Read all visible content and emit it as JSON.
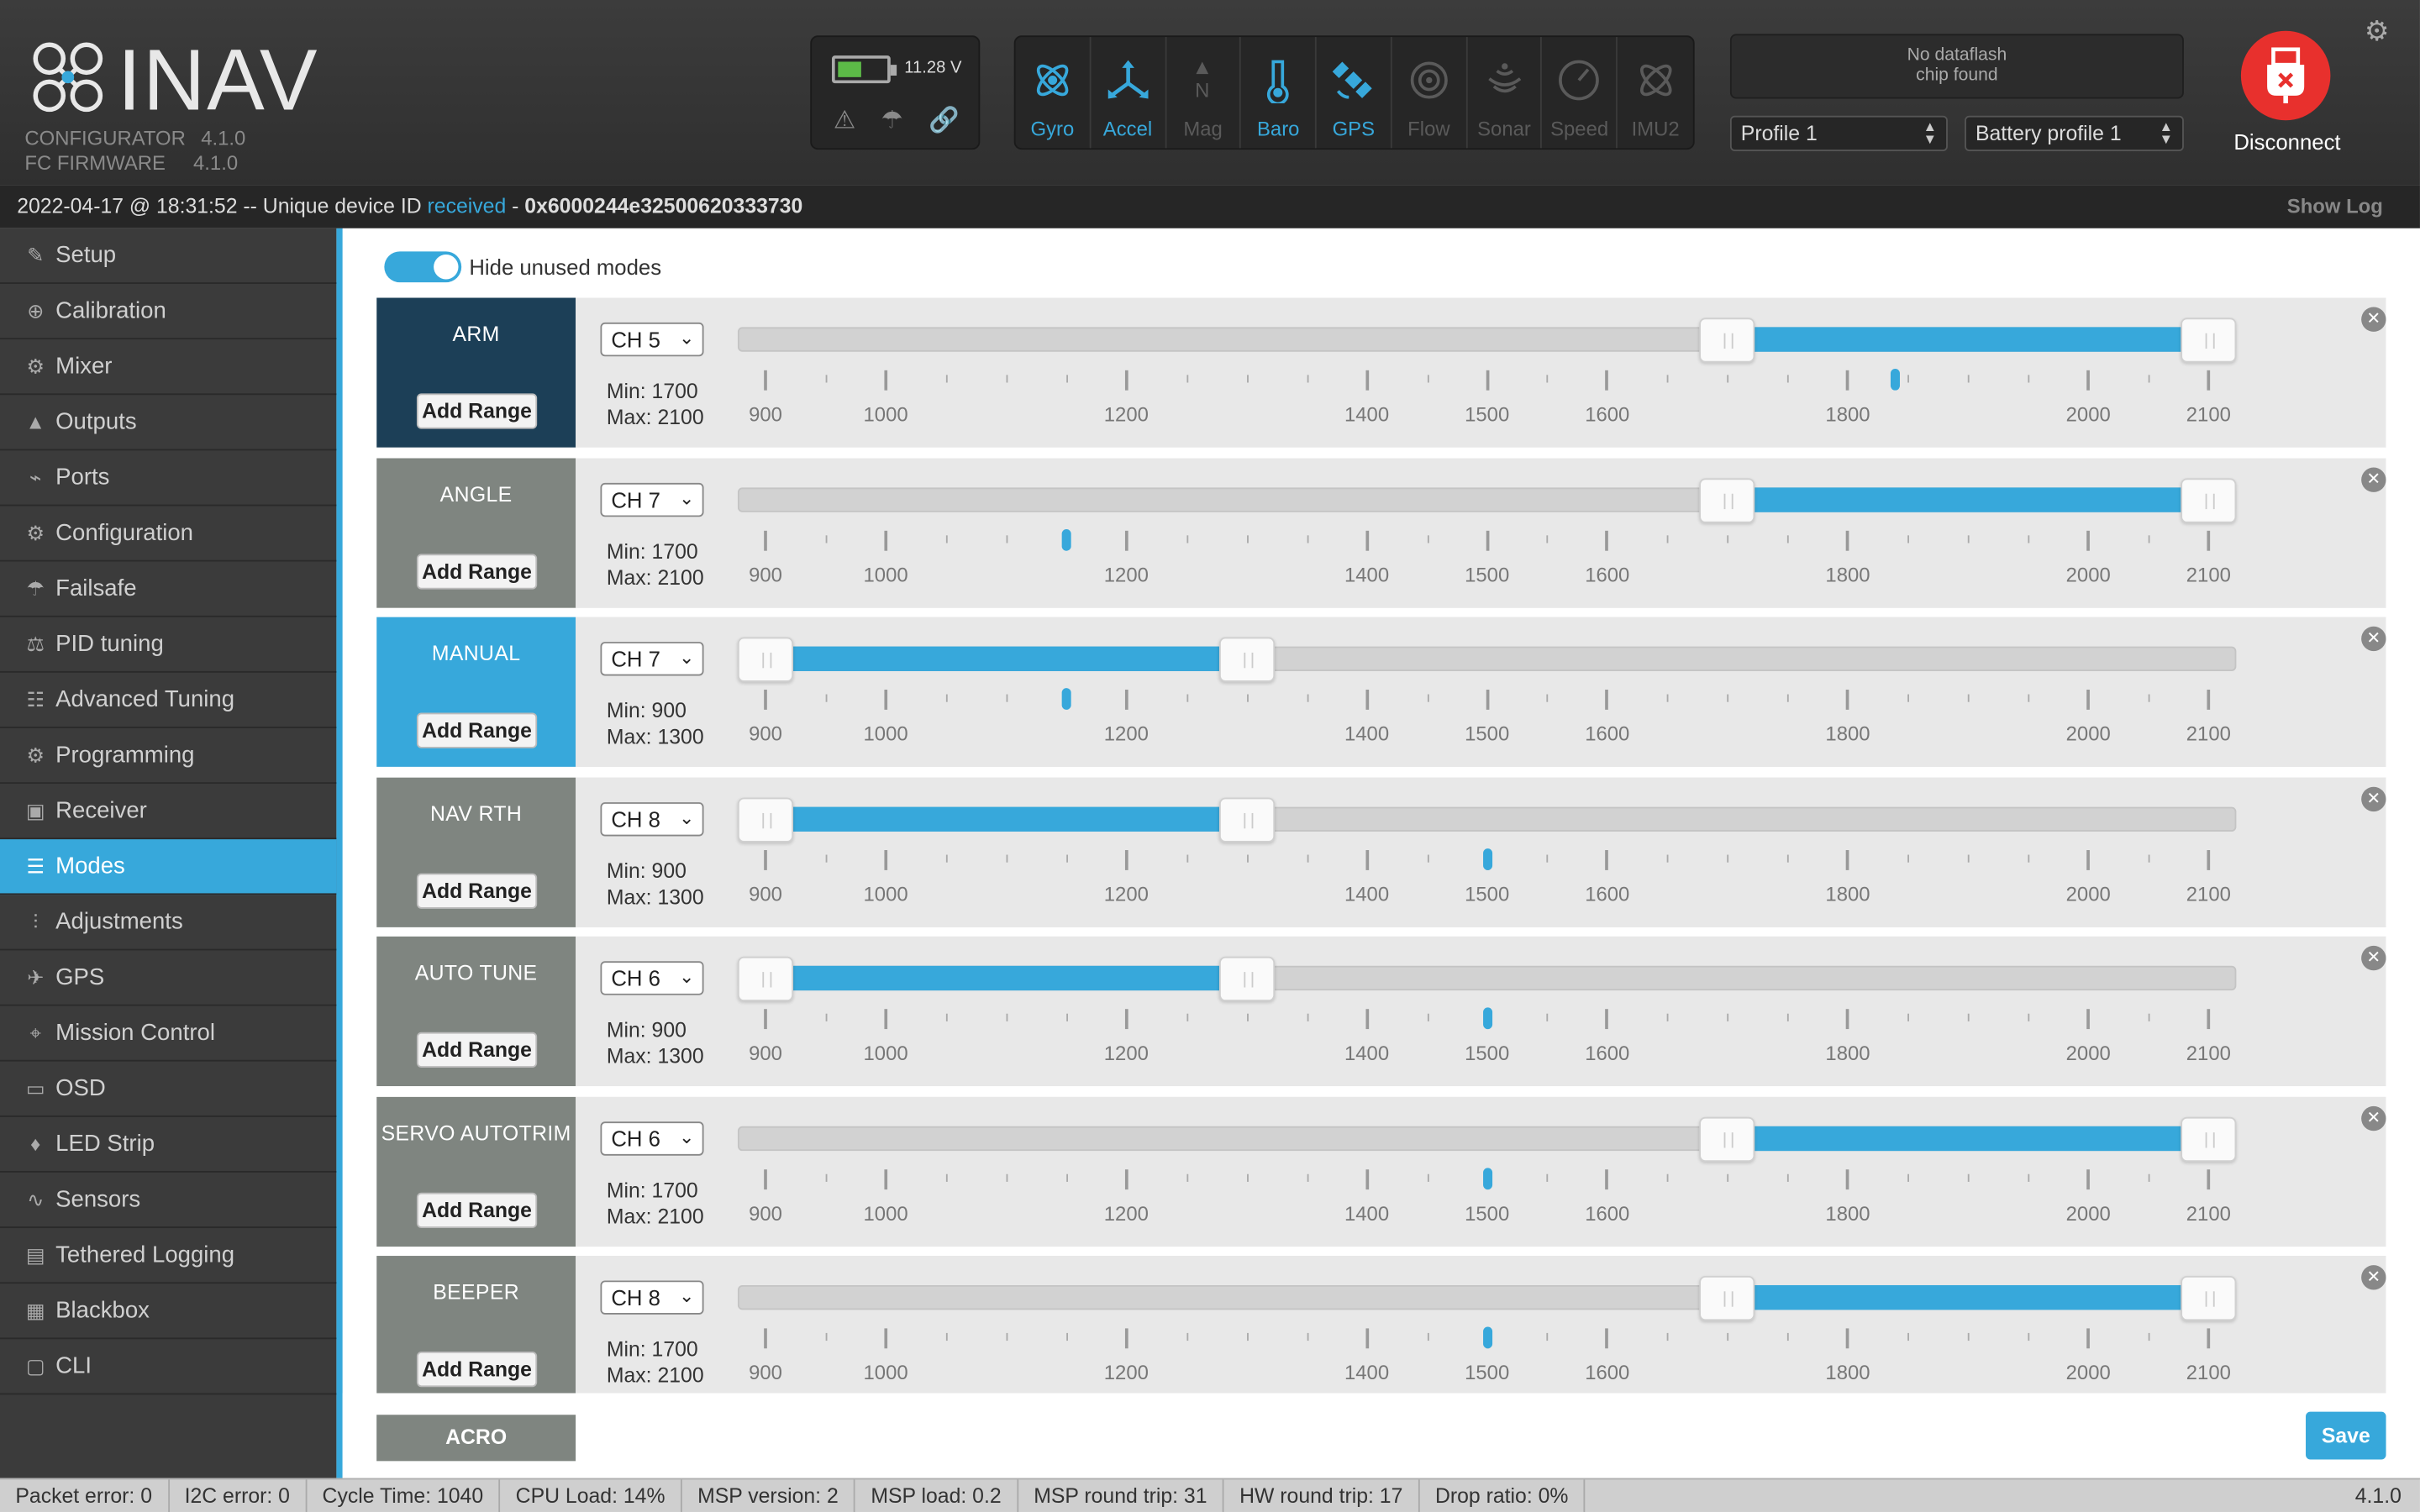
{
  "app": {
    "name": "INAV"
  },
  "versions": {
    "configurator_label": "CONFIGURATOR",
    "configurator_version": "4.1.0",
    "firmware_label": "FC FIRMWARE",
    "firmware_version": "4.1.0"
  },
  "battery": {
    "voltage": "11.28 V",
    "level": 0.45
  },
  "sensors": [
    {
      "label": "Gyro",
      "active": true,
      "icon": "gyro-icon"
    },
    {
      "label": "Accel",
      "active": true,
      "icon": "accel-icon"
    },
    {
      "label": "Mag",
      "active": false,
      "icon": "mag-icon"
    },
    {
      "label": "Baro",
      "active": true,
      "icon": "baro-icon"
    },
    {
      "label": "GPS",
      "active": true,
      "icon": "gps-icon"
    },
    {
      "label": "Flow",
      "active": false,
      "icon": "flow-icon"
    },
    {
      "label": "Sonar",
      "active": false,
      "icon": "sonar-icon"
    },
    {
      "label": "Speed",
      "active": false,
      "icon": "speed-icon"
    },
    {
      "label": "IMU2",
      "active": false,
      "icon": "imu2-icon"
    }
  ],
  "dataflash": {
    "line1": "No dataflash",
    "line2": "chip found"
  },
  "profile_select": {
    "value": "Profile 1"
  },
  "battery_profile_select": {
    "value": "Battery profile 1"
  },
  "connect": {
    "label": "Disconnect"
  },
  "status": {
    "timestamp": "2022-04-17 @ 18:31:52",
    "text": " -- Unique device ID ",
    "highlight": "received",
    "sep": " - ",
    "device_id": "0x6000244e32500620333730",
    "show_log": "Show Log"
  },
  "nav": [
    {
      "label": "Setup",
      "icon": "wrench-icon",
      "glyph": "✎"
    },
    {
      "label": "Calibration",
      "icon": "calibration-icon",
      "glyph": "⊕"
    },
    {
      "label": "Mixer",
      "icon": "mixer-icon",
      "glyph": "⚙"
    },
    {
      "label": "Outputs",
      "icon": "outputs-icon",
      "glyph": "▲"
    },
    {
      "label": "Ports",
      "icon": "ports-icon",
      "glyph": "⌁"
    },
    {
      "label": "Configuration",
      "icon": "gear-icon",
      "glyph": "⚙"
    },
    {
      "label": "Failsafe",
      "icon": "parachute-icon",
      "glyph": "☂"
    },
    {
      "label": "PID tuning",
      "icon": "pid-icon",
      "glyph": "⚖"
    },
    {
      "label": "Advanced Tuning",
      "icon": "advanced-tuning-icon",
      "glyph": "☷"
    },
    {
      "label": "Programming",
      "icon": "programming-icon",
      "glyph": "⚙"
    },
    {
      "label": "Receiver",
      "icon": "receiver-icon",
      "glyph": "▣"
    },
    {
      "label": "Modes",
      "icon": "modes-icon",
      "glyph": "☰"
    },
    {
      "label": "Adjustments",
      "icon": "adjustments-icon",
      "glyph": "⫶"
    },
    {
      "label": "GPS",
      "icon": "satellite-icon",
      "glyph": "✈"
    },
    {
      "label": "Mission Control",
      "icon": "map-pin-icon",
      "glyph": "⌖"
    },
    {
      "label": "OSD",
      "icon": "osd-icon",
      "glyph": "▭"
    },
    {
      "label": "LED Strip",
      "icon": "led-icon",
      "glyph": "♦"
    },
    {
      "label": "Sensors",
      "icon": "sensors-icon",
      "glyph": "∿"
    },
    {
      "label": "Tethered Logging",
      "icon": "tethered-logging-icon",
      "glyph": "▤"
    },
    {
      "label": "Blackbox",
      "icon": "blackbox-icon",
      "glyph": "▦"
    },
    {
      "label": "CLI",
      "icon": "cli-icon",
      "glyph": "▢"
    }
  ],
  "active_nav": "Modes",
  "hide_unused": {
    "label": "Hide unused modes",
    "on": true
  },
  "scale_ticks": [
    900,
    1000,
    1200,
    1400,
    1500,
    1600,
    1800,
    2000,
    2100
  ],
  "scale_range": [
    900,
    2100
  ],
  "add_range_label": "Add Range",
  "modes": [
    {
      "name": "ARM",
      "channel": "CH 5",
      "min_label": "Min: 1700",
      "max_label": "Max: 2100",
      "min": 1700,
      "max": 2100,
      "current": 1840,
      "color": "#1c3f57"
    },
    {
      "name": "ANGLE",
      "channel": "CH 7",
      "min_label": "Min: 1700",
      "max_label": "Max: 2100",
      "min": 1700,
      "max": 2100,
      "current": 1150,
      "color": "#7f8580"
    },
    {
      "name": "MANUAL",
      "channel": "CH 7",
      "min_label": "Min: 900",
      "max_label": "Max: 1300",
      "min": 900,
      "max": 1300,
      "current": 1150,
      "color": "#37a8db"
    },
    {
      "name": "NAV RTH",
      "channel": "CH 8",
      "min_label": "Min: 900",
      "max_label": "Max: 1300",
      "min": 900,
      "max": 1300,
      "current": 1500,
      "color": "#7f8580"
    },
    {
      "name": "AUTO TUNE",
      "channel": "CH 6",
      "min_label": "Min: 900",
      "max_label": "Max: 1300",
      "min": 900,
      "max": 1300,
      "current": 1500,
      "color": "#7f8580"
    },
    {
      "name": "SERVO AUTOTRIM",
      "channel": "CH 6",
      "min_label": "Min: 1700",
      "max_label": "Max: 2100",
      "min": 1700,
      "max": 2100,
      "current": 1500,
      "color": "#7f8580"
    },
    {
      "name": "BEEPER",
      "channel": "CH 8",
      "min_label": "Min: 1700",
      "max_label": "Max: 2100",
      "min": 1700,
      "max": 2100,
      "current": 1500,
      "color": "#7f8580"
    }
  ],
  "acro": {
    "label": "ACRO"
  },
  "save": {
    "label": "Save"
  },
  "status_items": [
    "Packet error: 0",
    "I2C error: 0",
    "Cycle Time: 1040",
    "CPU Load: 14%",
    "MSP version: 2",
    "MSP load: 0.2",
    "MSP round trip: 31",
    "HW round trip: 17",
    "Drop ratio: 0%"
  ],
  "footer_version": "4.1.0"
}
